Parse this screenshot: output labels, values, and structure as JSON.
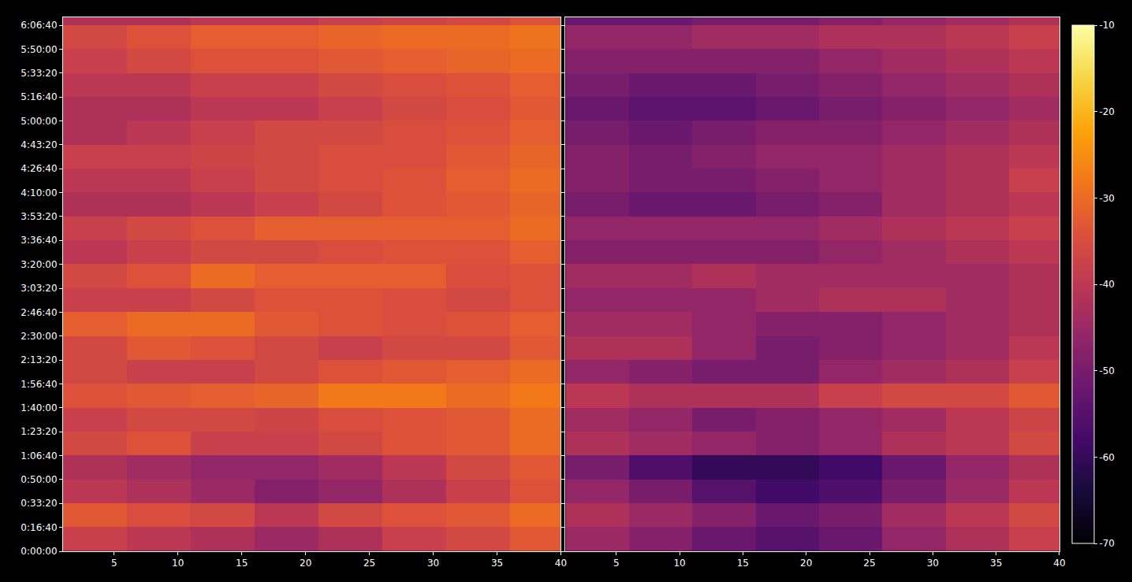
{
  "chart_data": [
    {
      "type": "heatmap",
      "color": "inferno",
      "grid": true,
      "tick_labels": true,
      "x": [
        3.5,
        8.5,
        13.5,
        18.5,
        23.5,
        28.5,
        33.5,
        38.5
      ],
      "y": [
        500,
        1500,
        2500,
        3500,
        4500,
        5500,
        6500,
        7500,
        8500,
        9500,
        10500,
        11500,
        12500,
        13500,
        14500,
        15500,
        16500,
        17500,
        18500,
        19500,
        20500,
        21500,
        22500
      ],
      "cells": [
        [
          -38,
          -40,
          -42,
          -45,
          -42,
          -38,
          -36,
          -33
        ],
        [
          -33,
          -35,
          -36,
          -40,
          -36,
          -34,
          -33,
          -30
        ],
        [
          -40,
          -42,
          -45,
          -48,
          -46,
          -42,
          -38,
          -34
        ],
        [
          -42,
          -44,
          -46,
          -46,
          -44,
          -40,
          -36,
          -33
        ],
        [
          -36,
          -34,
          -38,
          -38,
          -36,
          -34,
          -33,
          -30
        ],
        [
          -38,
          -36,
          -36,
          -37,
          -35,
          -34,
          -33,
          -30
        ],
        [
          -34,
          -33,
          -32,
          -31,
          -28,
          -28,
          -30,
          -28
        ],
        [
          -36,
          -38,
          -38,
          -36,
          -34,
          -33,
          -32,
          -30
        ],
        [
          -36,
          -33,
          -34,
          -36,
          -38,
          -36,
          -36,
          -33
        ],
        [
          -32,
          -30,
          -30,
          -33,
          -34,
          -35,
          -34,
          -32
        ],
        [
          -38,
          -38,
          -36,
          -34,
          -34,
          -35,
          -36,
          -34
        ],
        [
          -36,
          -34,
          -30,
          -32,
          -32,
          -32,
          -35,
          -34
        ],
        [
          -40,
          -38,
          -36,
          -36,
          -35,
          -34,
          -34,
          -32
        ],
        [
          -38,
          -36,
          -34,
          -32,
          -32,
          -32,
          -32,
          -30
        ],
        [
          -42,
          -42,
          -40,
          -38,
          -36,
          -34,
          -33,
          -31
        ],
        [
          -40,
          -40,
          -38,
          -36,
          -35,
          -34,
          -32,
          -30
        ],
        [
          -38,
          -38,
          -37,
          -36,
          -35,
          -35,
          -33,
          -31
        ],
        [
          -42,
          -40,
          -38,
          -36,
          -36,
          -35,
          -34,
          -32
        ],
        [
          -42,
          -42,
          -40,
          -40,
          -38,
          -36,
          -35,
          -33
        ],
        [
          -40,
          -40,
          -38,
          -38,
          -36,
          -35,
          -34,
          -32
        ],
        [
          -38,
          -36,
          -34,
          -34,
          -33,
          -32,
          -31,
          -30
        ],
        [
          -36,
          -34,
          -32,
          -32,
          -31,
          -30,
          -30,
          -29
        ],
        [
          -42,
          -42,
          -40,
          -40,
          -38,
          -37,
          -36,
          -34
        ]
      ],
      "zlim": [
        -70,
        -10
      ],
      "xlim": [
        1,
        40
      ],
      "xticks": [
        5,
        10,
        15,
        20,
        25,
        30,
        35,
        40
      ],
      "ylim": [
        0,
        22330
      ],
      "yticks": [
        {
          "value": 0,
          "label": "0:00:00"
        },
        {
          "value": 1000,
          "label": "0:16:40"
        },
        {
          "value": 2000,
          "label": "0:33:20"
        },
        {
          "value": 3000,
          "label": "0:50:00"
        },
        {
          "value": 4000,
          "label": "1:06:40"
        },
        {
          "value": 5000,
          "label": "1:23:20"
        },
        {
          "value": 6000,
          "label": "1:40:00"
        },
        {
          "value": 7000,
          "label": "1:56:40"
        },
        {
          "value": 8000,
          "label": "2:13:20"
        },
        {
          "value": 9000,
          "label": "2:30:00"
        },
        {
          "value": 10000,
          "label": "2:46:40"
        },
        {
          "value": 11000,
          "label": "3:03:20"
        },
        {
          "value": 12000,
          "label": "3:20:00"
        },
        {
          "value": 13000,
          "label": "3:36:40"
        },
        {
          "value": 14000,
          "label": "3:53:20"
        },
        {
          "value": 15000,
          "label": "4:10:00"
        },
        {
          "value": 16000,
          "label": "4:26:40"
        },
        {
          "value": 17000,
          "label": "4:43:20"
        },
        {
          "value": 18000,
          "label": "5:00:00"
        },
        {
          "value": 19000,
          "label": "5:16:40"
        },
        {
          "value": 20000,
          "label": "5:33:20"
        },
        {
          "value": 21000,
          "label": "5:50:00"
        },
        {
          "value": 22000,
          "label": "6:06:40"
        }
      ]
    },
    {
      "type": "heatmap",
      "color": "inferno",
      "grid": true,
      "tick_labels": "x",
      "x": [
        3.5,
        8.5,
        13.5,
        18.5,
        23.5,
        28.5,
        33.5,
        38.5
      ],
      "y": [
        500,
        1500,
        2500,
        3500,
        4500,
        5500,
        6500,
        7500,
        8500,
        9500,
        10500,
        11500,
        12500,
        13500,
        14500,
        15500,
        16500,
        17500,
        18500,
        19500,
        20500,
        21500,
        22500
      ],
      "cells": [
        [
          -45,
          -48,
          -52,
          -55,
          -52,
          -46,
          -42,
          -38
        ],
        [
          -42,
          -45,
          -48,
          -52,
          -50,
          -44,
          -40,
          -36
        ],
        [
          -46,
          -50,
          -55,
          -58,
          -56,
          -50,
          -45,
          -40
        ],
        [
          -50,
          -56,
          -60,
          -60,
          -58,
          -52,
          -46,
          -42
        ],
        [
          -42,
          -44,
          -46,
          -48,
          -46,
          -42,
          -40,
          -36
        ],
        [
          -44,
          -46,
          -50,
          -48,
          -46,
          -44,
          -40,
          -37
        ],
        [
          -40,
          -42,
          -42,
          -42,
          -38,
          -36,
          -36,
          -33
        ],
        [
          -46,
          -48,
          -50,
          -50,
          -46,
          -44,
          -42,
          -38
        ],
        [
          -42,
          -42,
          -46,
          -50,
          -48,
          -46,
          -44,
          -40
        ],
        [
          -44,
          -44,
          -46,
          -48,
          -48,
          -46,
          -44,
          -42
        ],
        [
          -46,
          -46,
          -46,
          -44,
          -42,
          -42,
          -44,
          -42
        ],
        [
          -44,
          -44,
          -42,
          -44,
          -44,
          -44,
          -44,
          -42
        ],
        [
          -48,
          -48,
          -48,
          -48,
          -46,
          -44,
          -42,
          -40
        ],
        [
          -46,
          -46,
          -46,
          -46,
          -44,
          -42,
          -40,
          -38
        ],
        [
          -50,
          -52,
          -52,
          -50,
          -48,
          -44,
          -42,
          -40
        ],
        [
          -48,
          -50,
          -50,
          -48,
          -46,
          -44,
          -42,
          -38
        ],
        [
          -48,
          -50,
          -48,
          -46,
          -46,
          -44,
          -42,
          -40
        ],
        [
          -50,
          -52,
          -50,
          -48,
          -48,
          -46,
          -44,
          -42
        ],
        [
          -52,
          -54,
          -54,
          -52,
          -50,
          -48,
          -46,
          -44
        ],
        [
          -50,
          -52,
          -52,
          -50,
          -48,
          -46,
          -44,
          -42
        ],
        [
          -48,
          -48,
          -48,
          -48,
          -46,
          -44,
          -42,
          -40
        ],
        [
          -46,
          -46,
          -44,
          -44,
          -42,
          -42,
          -40,
          -38
        ],
        [
          -52,
          -52,
          -50,
          -50,
          -48,
          -46,
          -44,
          -42
        ]
      ],
      "zlim": [
        -70,
        -10
      ],
      "zticks": [
        -70,
        -60,
        -50,
        -40,
        -30,
        -20,
        -10
      ],
      "xlim": [
        1,
        40
      ],
      "xticks": [
        5,
        10,
        15,
        20,
        25,
        30,
        35,
        40
      ],
      "ylim": [
        0,
        22330
      ],
      "yticks": [
        {
          "value": 0,
          "label": "0:00:00"
        },
        {
          "value": 1000,
          "label": "0:16:40"
        },
        {
          "value": 2000,
          "label": "0:33:20"
        },
        {
          "value": 3000,
          "label": "0:50:00"
        },
        {
          "value": 4000,
          "label": "1:06:40"
        },
        {
          "value": 5000,
          "label": "1:23:20"
        },
        {
          "value": 6000,
          "label": "1:40:00"
        },
        {
          "value": 7000,
          "label": "1:56:40"
        },
        {
          "value": 8000,
          "label": "2:13:20"
        },
        {
          "value": 9000,
          "label": "2:30:00"
        },
        {
          "value": 10000,
          "label": "2:46:40"
        },
        {
          "value": 11000,
          "label": "3:03:20"
        },
        {
          "value": 12000,
          "label": "3:20:00"
        },
        {
          "value": 13000,
          "label": "3:36:40"
        },
        {
          "value": 14000,
          "label": "3:53:20"
        },
        {
          "value": 15000,
          "label": "4:10:00"
        },
        {
          "value": 16000,
          "label": "4:26:40"
        },
        {
          "value": 17000,
          "label": "4:43:20"
        },
        {
          "value": 18000,
          "label": "5:00:00"
        },
        {
          "value": 19000,
          "label": "5:16:40"
        },
        {
          "value": 20000,
          "label": "5:33:20"
        },
        {
          "value": 21000,
          "label": "5:50:00"
        },
        {
          "value": 22000,
          "label": "6:06:40"
        }
      ]
    }
  ]
}
